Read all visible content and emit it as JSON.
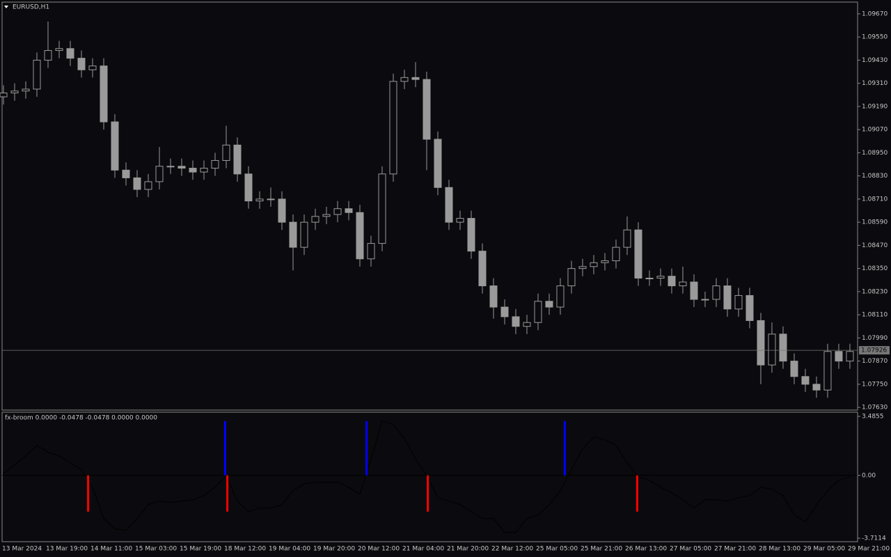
{
  "chart_data": [
    {
      "type": "candlestick",
      "title": "EURUSD,H1",
      "color": "#9a9a9a",
      "open": [
        1.0924,
        1.0926,
        1.0927,
        1.0928,
        1.0943,
        1.0948,
        1.0949,
        1.0944,
        1.0938,
        1.094,
        1.0911,
        1.0886,
        1.0882,
        1.0876,
        1.088,
        1.0888,
        1.0888,
        1.0887,
        1.0885,
        1.0887,
        1.0891,
        1.0899,
        1.0884,
        1.087,
        1.0871,
        1.0871,
        1.0859,
        1.0846,
        1.0859,
        1.0862,
        1.0863,
        1.0866,
        1.0864,
        1.084,
        1.0848,
        1.0884,
        1.0932,
        1.0934,
        1.0933,
        1.0902,
        1.0877,
        1.0859,
        1.0861,
        1.0844,
        1.0826,
        1.0815,
        1.081,
        1.0805,
        1.0807,
        1.0818,
        1.0815,
        1.0826,
        1.0835,
        1.0836,
        1.0838,
        1.0839,
        1.0846,
        1.0855,
        1.083,
        1.083,
        1.0831,
        1.0826,
        1.0828,
        1.0819,
        1.0819,
        1.0826,
        1.0814,
        1.0821,
        1.0808,
        1.0785,
        1.0801,
        1.0787,
        1.0779,
        1.0775,
        1.0772,
        1.0792,
        1.0787
      ],
      "high": [
        1.093,
        1.0931,
        1.0932,
        1.0947,
        1.0963,
        1.0953,
        1.0953,
        1.0948,
        1.0944,
        1.0944,
        1.0915,
        1.089,
        1.0886,
        1.0884,
        1.0898,
        1.0892,
        1.0892,
        1.0891,
        1.0891,
        1.0895,
        1.0909,
        1.0903,
        1.0888,
        1.0875,
        1.0877,
        1.0875,
        1.0863,
        1.0863,
        1.0866,
        1.0867,
        1.087,
        1.087,
        1.0868,
        1.0852,
        1.0888,
        1.0936,
        1.0938,
        1.0942,
        1.0937,
        1.0906,
        1.0881,
        1.0865,
        1.0865,
        1.0848,
        1.083,
        1.0819,
        1.0814,
        1.0811,
        1.0822,
        1.0822,
        1.083,
        1.0839,
        1.084,
        1.0842,
        1.0843,
        1.085,
        1.0862,
        1.0859,
        1.0834,
        1.0835,
        1.0835,
        1.0836,
        1.0832,
        1.0823,
        1.083,
        1.083,
        1.0825,
        1.0825,
        1.0812,
        1.0807,
        1.0805,
        1.0791,
        1.0783,
        1.0779,
        1.0796,
        1.0796,
        1.0796
      ],
      "low": [
        1.092,
        1.0922,
        1.0923,
        1.0924,
        1.0939,
        1.0944,
        1.094,
        1.0934,
        1.0934,
        1.0907,
        1.0882,
        1.0878,
        1.0872,
        1.0872,
        1.0876,
        1.0884,
        1.0883,
        1.0881,
        1.0881,
        1.0883,
        1.0887,
        1.088,
        1.0866,
        1.0866,
        1.0867,
        1.0855,
        1.0834,
        1.0842,
        1.0855,
        1.0858,
        1.0859,
        1.086,
        1.0836,
        1.0836,
        1.0844,
        1.088,
        1.0928,
        1.0929,
        1.0886,
        1.0873,
        1.0855,
        1.0855,
        1.084,
        1.0822,
        1.0809,
        1.0806,
        1.0801,
        1.0801,
        1.0803,
        1.0811,
        1.0811,
        1.0822,
        1.0831,
        1.0832,
        1.0834,
        1.0835,
        1.0842,
        1.0826,
        1.0826,
        1.0826,
        1.0822,
        1.0822,
        1.0815,
        1.0815,
        1.0815,
        1.081,
        1.081,
        1.0804,
        1.0775,
        1.0781,
        1.0783,
        1.0775,
        1.0771,
        1.0768,
        1.0768,
        1.0783,
        1.0783
      ],
      "close": [
        1.0926,
        1.0927,
        1.0928,
        1.0943,
        1.0948,
        1.0949,
        1.0944,
        1.0938,
        1.094,
        1.0911,
        1.0886,
        1.0882,
        1.0876,
        1.088,
        1.0888,
        1.0888,
        1.0887,
        1.0885,
        1.0887,
        1.0891,
        1.0899,
        1.0884,
        1.087,
        1.0871,
        1.0871,
        1.0859,
        1.0846,
        1.0859,
        1.0862,
        1.0863,
        1.0866,
        1.0864,
        1.084,
        1.0848,
        1.0884,
        1.0932,
        1.0934,
        1.0933,
        1.0902,
        1.0877,
        1.0859,
        1.0861,
        1.0844,
        1.0826,
        1.0815,
        1.081,
        1.0805,
        1.0807,
        1.0818,
        1.0815,
        1.0826,
        1.0835,
        1.0836,
        1.0838,
        1.0839,
        1.0846,
        1.0855,
        1.083,
        1.083,
        1.0831,
        1.0826,
        1.0828,
        1.0819,
        1.0819,
        1.0826,
        1.0814,
        1.0821,
        1.0808,
        1.0785,
        1.0801,
        1.0787,
        1.0779,
        1.0775,
        1.0772,
        1.0792,
        1.0787,
        1.0792
      ],
      "current_price": 1.07926,
      "xlim": [
        -0.125,
        76.69
      ],
      "ylim": [
        1.07616,
        1.09731
      ],
      "yticks": [
        {
          "value": 1.0967,
          "label": "1.09670"
        },
        {
          "value": 1.0955,
          "label": "1.09550"
        },
        {
          "value": 1.0943,
          "label": "1.09430"
        },
        {
          "value": 1.0931,
          "label": "1.09310"
        },
        {
          "value": 1.0919,
          "label": "1.09190"
        },
        {
          "value": 1.0907,
          "label": "1.09070"
        },
        {
          "value": 1.0895,
          "label": "1.08950"
        },
        {
          "value": 1.0883,
          "label": "1.08830"
        },
        {
          "value": 1.0871,
          "label": "1.08710"
        },
        {
          "value": 1.0859,
          "label": "1.08590"
        },
        {
          "value": 1.0847,
          "label": "1.08470"
        },
        {
          "value": 1.0835,
          "label": "1.08350"
        },
        {
          "value": 1.0823,
          "label": "1.08230"
        },
        {
          "value": 1.0811,
          "label": "1.08110"
        },
        {
          "value": 1.0799,
          "label": "1.07990"
        },
        {
          "value": 1.0787,
          "label": "1.07870"
        },
        {
          "value": 1.0775,
          "label": "1.07750"
        },
        {
          "value": 1.0763,
          "label": "1.07630"
        }
      ],
      "time_labels": [
        "13 Mar 2024",
        "13 Mar 19:00",
        "14 Mar 11:00",
        "15 Mar 03:00",
        "15 Mar 19:00",
        "18 Mar 12:00",
        "19 Mar 04:00",
        "19 Mar 20:00",
        "20 Mar 12:00",
        "21 Mar 04:00",
        "21 Mar 20:00",
        "22 Mar 12:00",
        "25 Mar 05:00",
        "25 Mar 21:00",
        "26 Mar 13:00",
        "27 Mar 05:00",
        "27 Mar 21:00",
        "28 Mar 13:00",
        "29 Mar 05:00",
        "29 Mar 21:00"
      ]
    },
    {
      "type": "line",
      "title": "fx-broom 0.0000 -0.0478 -0.0478 0.0000 0.0000",
      "color": "#000000",
      "values": [
        0.12,
        0.62,
        1.15,
        1.77,
        1.36,
        1.15,
        0.74,
        0.33,
        -0.7,
        -2.55,
        -3.17,
        -3.25,
        -2.55,
        -1.73,
        -1.52,
        -1.6,
        -1.52,
        -1.44,
        -1.19,
        -0.7,
        0,
        -1.52,
        -2.14,
        -1.93,
        -1.93,
        -1.73,
        -0.9,
        -0.49,
        -0.41,
        -0.41,
        -0.41,
        -0.7,
        -1.11,
        0.95,
        3.21,
        3.0,
        2.18,
        0.95,
        0,
        -1.32,
        -1.52,
        -1.73,
        -2.14,
        -2.55,
        -2.55,
        -3.37,
        -3.37,
        -2.55,
        -2.34,
        -1.73,
        -0.9,
        0.33,
        1.56,
        2.26,
        2.1,
        1.77,
        0.74,
        -0.08,
        -0.29,
        -0.7,
        -1.03,
        -1.44,
        -1.93,
        -1.44,
        -1.44,
        -1.52,
        -1.32,
        -1.19,
        -0.7,
        -0.82,
        -1.19,
        -2.34,
        -2.75,
        -1.73,
        -0.9,
        -0.29,
        -0.08
      ],
      "buy_signals": {
        "x": [
          19.9,
          32.6,
          50.4
        ],
        "values": [
          3.21,
          3.21,
          3.21
        ],
        "color": "#0000ff"
      },
      "sell_signals": {
        "x": [
          7.6,
          20.1,
          38.1,
          56.9
        ],
        "values": [
          -2.14,
          -2.14,
          -2.14,
          -2.14
        ],
        "color": "#ff0000"
      },
      "xlim": [
        -0.125,
        76.69
      ],
      "ylim": [
        -3.917,
        3.732
      ],
      "yticks": [
        3.4855,
        {
          "value": 0,
          "label": "0.00"
        },
        -3.7114
      ]
    }
  ]
}
